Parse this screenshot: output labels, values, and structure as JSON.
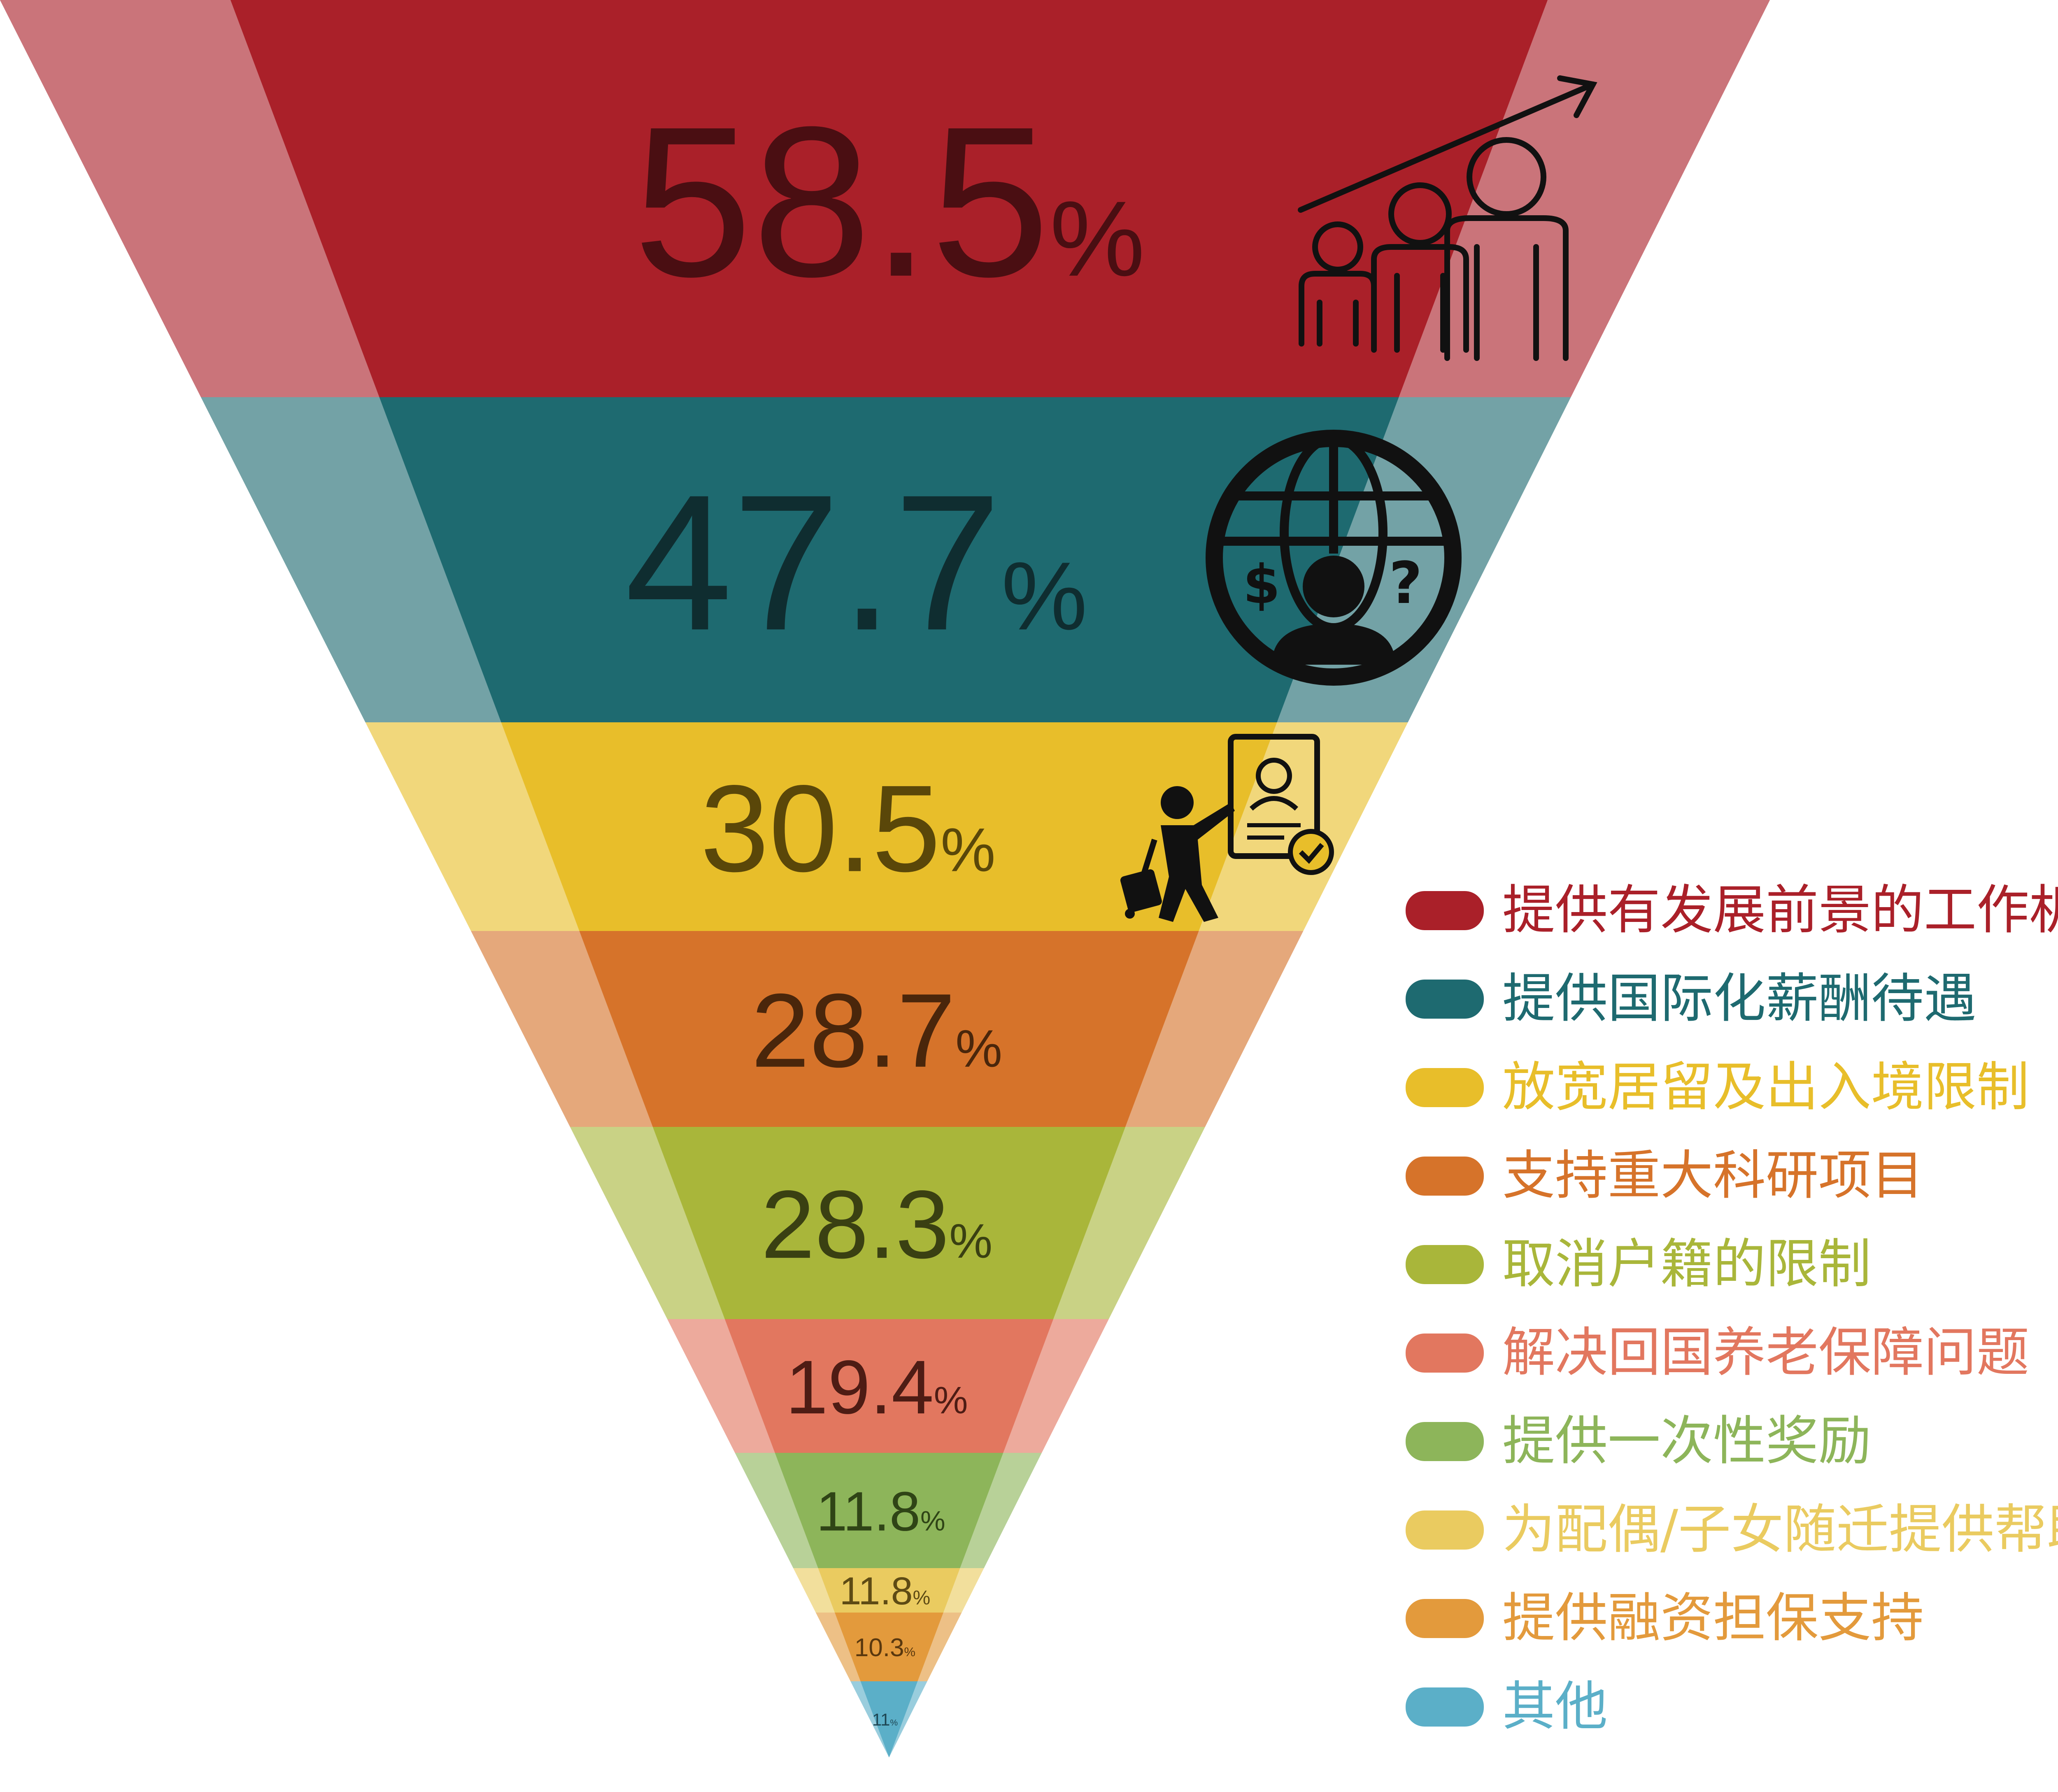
{
  "chart_data": {
    "type": "funnel",
    "unit": "%",
    "categories": [
      "提供有发展前景的工作机会",
      "提供国际化薪酬待遇",
      "放宽居留及出入境限制",
      "支持重大科研项目",
      "取消户籍的限制",
      "解决回国养老保障问题",
      "提供一次性奖励",
      "为配偶/子女随迁提供帮助",
      "提供融资担保支持",
      "其他"
    ],
    "values": [
      58.5,
      47.7,
      30.5,
      28.7,
      28.3,
      19.4,
      11.8,
      11.8,
      10.3,
      11
    ],
    "value_labels": [
      "58.5",
      "47.7",
      "30.5",
      "28.7",
      "28.3",
      "19.4",
      "11.8",
      "11.8",
      "10.3",
      "11"
    ],
    "colors": [
      "#AA2029",
      "#1E6A70",
      "#E8BE2A",
      "#D6732A",
      "#A9B63A",
      "#E2775F",
      "#8DB55A",
      "#EACB60",
      "#E39A3C",
      "#5BAFC8"
    ],
    "text_colors": [
      "#4a0e12",
      "#0f2d30",
      "#5a4709",
      "#4a260b",
      "#3a4012",
      "#4e1c14",
      "#2f4416",
      "#5e4b14",
      "#5a380e",
      "#1d4552"
    ],
    "legend": {
      "position": "right"
    },
    "icons": [
      "career-growth-icon",
      "global-salary-icon",
      "immigration-visa-icon"
    ]
  }
}
